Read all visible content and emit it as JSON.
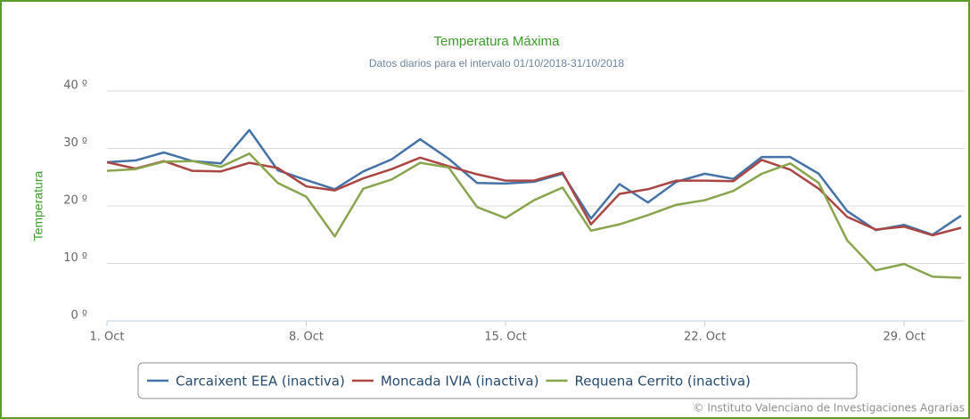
{
  "chart_data": {
    "type": "line",
    "title": "Temperatura Máxima",
    "subtitle": "Datos diarios para el intervalo 01/10/2018-31/10/2018",
    "y_label": "Temperatura",
    "credits": "© Instituto Valenciano de Investigaciones Agrarias",
    "x": [
      1,
      2,
      3,
      4,
      5,
      6,
      7,
      8,
      9,
      10,
      11,
      12,
      13,
      14,
      15,
      16,
      17,
      18,
      19,
      20,
      21,
      22,
      23,
      24,
      25,
      26,
      27,
      28,
      29,
      30,
      31
    ],
    "xlim": [
      1,
      31
    ],
    "xticks": [
      {
        "value": 1,
        "label": "1. Oct"
      },
      {
        "value": 8,
        "label": "8. Oct"
      },
      {
        "value": 15,
        "label": "15. Oct"
      },
      {
        "value": 22,
        "label": "22. Oct"
      },
      {
        "value": 29,
        "label": "29. Oct"
      }
    ],
    "ylim": [
      0,
      40
    ],
    "yticks": [
      {
        "value": 0,
        "label": "0 º"
      },
      {
        "value": 10,
        "label": "10 º"
      },
      {
        "value": 20,
        "label": "20 º"
      },
      {
        "value": 30,
        "label": "30 º"
      },
      {
        "value": 40,
        "label": "40 º"
      }
    ],
    "grid": true,
    "series": [
      {
        "name": "Carcaixent EEA (inactiva)",
        "color": "#4572a7",
        "values": [
          27.6,
          27.9,
          29.3,
          27.8,
          27.4,
          33.2,
          26.2,
          24.5,
          22.9,
          26.0,
          28.1,
          31.6,
          28.2,
          24.0,
          23.9,
          24.2,
          25.6,
          17.8,
          23.8,
          20.6,
          24.2,
          25.6,
          24.7,
          28.5,
          28.5,
          25.6,
          19.1,
          15.8,
          16.7,
          15.0,
          18.3
        ]
      },
      {
        "name": "Moncada IVIA (inactiva)",
        "color": "#aa4643",
        "values": [
          27.6,
          26.5,
          27.8,
          26.1,
          26.0,
          27.5,
          26.6,
          23.4,
          22.7,
          24.8,
          26.4,
          28.4,
          26.9,
          25.5,
          24.4,
          24.4,
          25.8,
          16.8,
          22.1,
          22.9,
          24.4,
          24.4,
          24.3,
          28.0,
          26.3,
          23.0,
          18.1,
          15.9,
          16.4,
          14.9,
          16.2
        ]
      },
      {
        "name": "Requena Cerrito (inactiva)",
        "color": "#89a54e",
        "values": [
          26.1,
          26.4,
          27.7,
          27.8,
          26.8,
          29.1,
          24.0,
          21.6,
          14.7,
          23.0,
          24.6,
          27.5,
          26.7,
          19.8,
          17.9,
          21.0,
          23.2,
          15.7,
          16.8,
          18.4,
          20.2,
          21.0,
          22.6,
          25.6,
          27.4,
          24.0,
          14.0,
          8.8,
          9.9,
          7.7,
          7.5
        ]
      }
    ]
  }
}
